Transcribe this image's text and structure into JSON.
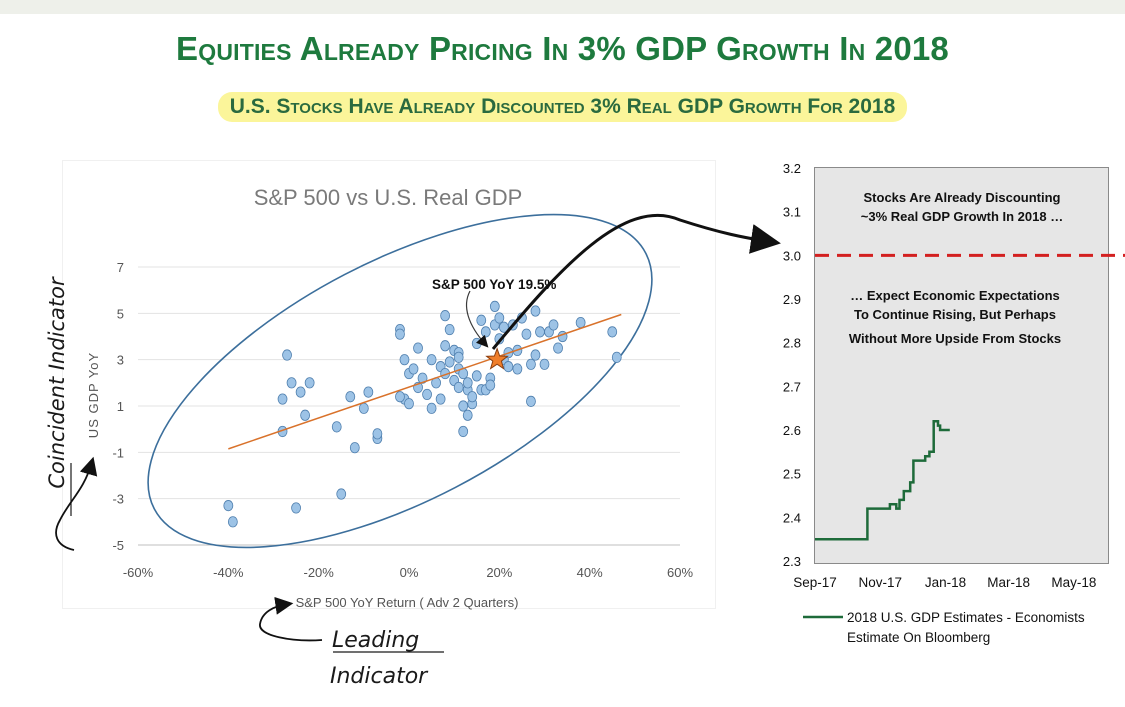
{
  "header": {
    "title": "Equities Already Pricing In 3% GDP Growth In 2018",
    "subtitle": "U.S. Stocks Have Already Discounted 3% Real GDP Growth For 2018"
  },
  "colors": {
    "title_green": "#1e7a3e",
    "highlight": "#fbf59a",
    "scatter_point": "#9dc3e6",
    "trendline": "#d9722b",
    "ellipse": "#3c6f9c",
    "gdp_line": "#1e6b3a",
    "dashed_line": "#d32020"
  },
  "annotations": {
    "coincident": "Coincident Indicator",
    "leading_line1": "Leading",
    "leading_line2": "Indicator",
    "star_label": "S&P 500 YoY 19.5%"
  },
  "chart_data": [
    {
      "type": "scatter",
      "title": "S&P 500 vs U.S. Real GDP",
      "xlabel": "S&P 500 YoY Return ( Adv 2 Quarters)",
      "ylabel": "US GDP YoY",
      "xlim": [
        -0.6,
        0.6
      ],
      "ylim": [
        -5,
        7
      ],
      "x_ticks": [
        -0.6,
        -0.4,
        -0.2,
        0,
        0.2,
        0.4,
        0.6
      ],
      "x_tick_labels": [
        "-60%",
        "-40%",
        "-20%",
        "0%",
        "20%",
        "40%",
        "60%"
      ],
      "y_ticks": [
        -5,
        -3,
        -1,
        1,
        3,
        5,
        7
      ],
      "y_tick_labels": [
        "-5",
        "-3",
        "-1",
        "1",
        "3",
        "5",
        "7"
      ],
      "points": [
        [
          -0.4,
          -3.3
        ],
        [
          -0.39,
          -4.0
        ],
        [
          -0.28,
          1.3
        ],
        [
          -0.27,
          3.2
        ],
        [
          -0.28,
          -0.1
        ],
        [
          -0.26,
          2.0
        ],
        [
          -0.24,
          1.6
        ],
        [
          -0.22,
          2.0
        ],
        [
          -0.23,
          0.6
        ],
        [
          -0.25,
          -3.4
        ],
        [
          -0.15,
          -2.8
        ],
        [
          -0.12,
          -0.8
        ],
        [
          -0.1,
          0.9
        ],
        [
          -0.09,
          1.6
        ],
        [
          -0.07,
          -0.4
        ],
        [
          -0.07,
          -0.2
        ],
        [
          -0.13,
          1.4
        ],
        [
          -0.16,
          0.1
        ],
        [
          -0.02,
          4.3
        ],
        [
          -0.02,
          4.1
        ],
        [
          -0.01,
          3.0
        ],
        [
          0.0,
          2.4
        ],
        [
          0.01,
          2.6
        ],
        [
          0.02,
          3.5
        ],
        [
          0.02,
          1.8
        ],
        [
          -0.01,
          1.3
        ],
        [
          -0.02,
          1.4
        ],
        [
          0.0,
          1.1
        ],
        [
          0.03,
          2.2
        ],
        [
          0.04,
          1.5
        ],
        [
          0.05,
          3.0
        ],
        [
          0.05,
          0.9
        ],
        [
          0.06,
          2.0
        ],
        [
          0.07,
          2.7
        ],
        [
          0.07,
          1.3
        ],
        [
          0.08,
          4.9
        ],
        [
          0.08,
          3.6
        ],
        [
          0.09,
          2.9
        ],
        [
          0.09,
          4.3
        ],
        [
          0.1,
          3.4
        ],
        [
          0.1,
          2.1
        ],
        [
          0.11,
          1.8
        ],
        [
          0.11,
          2.6
        ],
        [
          0.11,
          3.3
        ],
        [
          0.12,
          1.0
        ],
        [
          0.12,
          2.4
        ],
        [
          0.13,
          1.7
        ],
        [
          0.13,
          2.0
        ],
        [
          0.14,
          1.1
        ],
        [
          0.14,
          1.4
        ],
        [
          0.15,
          2.3
        ],
        [
          0.15,
          3.7
        ],
        [
          0.16,
          1.7
        ],
        [
          0.16,
          4.7
        ],
        [
          0.17,
          4.2
        ],
        [
          0.17,
          1.7
        ],
        [
          0.18,
          2.2
        ],
        [
          0.18,
          1.9
        ],
        [
          0.19,
          5.3
        ],
        [
          0.19,
          4.5
        ],
        [
          0.2,
          3.9
        ],
        [
          0.2,
          4.8
        ],
        [
          0.21,
          3.0
        ],
        [
          0.21,
          4.4
        ],
        [
          0.22,
          2.7
        ],
        [
          0.23,
          4.5
        ],
        [
          0.24,
          2.6
        ],
        [
          0.24,
          3.4
        ],
        [
          0.25,
          4.8
        ],
        [
          0.26,
          4.1
        ],
        [
          0.27,
          2.8
        ],
        [
          0.27,
          1.2
        ],
        [
          0.28,
          5.1
        ],
        [
          0.28,
          3.2
        ],
        [
          0.29,
          4.2
        ],
        [
          0.3,
          2.8
        ],
        [
          0.31,
          4.2
        ],
        [
          0.32,
          4.5
        ],
        [
          0.33,
          3.5
        ],
        [
          0.34,
          4.0
        ],
        [
          0.38,
          4.6
        ],
        [
          0.45,
          4.2
        ],
        [
          0.46,
          3.1
        ],
        [
          0.12,
          -0.1
        ],
        [
          0.13,
          0.6
        ],
        [
          0.11,
          3.1
        ],
        [
          0.08,
          2.4
        ],
        [
          0.22,
          3.3
        ]
      ],
      "trendline": [
        [
          -0.4,
          -0.85
        ],
        [
          0.47,
          4.95
        ]
      ],
      "star_point": [
        0.195,
        3.0
      ]
    },
    {
      "type": "line",
      "ylim": [
        2.3,
        3.2
      ],
      "y_ticks": [
        2.3,
        2.4,
        2.5,
        2.6,
        2.7,
        2.8,
        2.9,
        3.0,
        3.1,
        3.2
      ],
      "y_tick_labels": [
        "2.3",
        "2.4",
        "2.5",
        "2.6",
        "2.7",
        "2.8",
        "2.9",
        "3.0",
        "3.1",
        "3.2"
      ],
      "x_tick_labels": [
        "Sep-17",
        "Nov-17",
        "Jan-18",
        "Mar-18",
        "May-18"
      ],
      "x_ticks": [
        "2017-09-01",
        "2017-11-01",
        "2018-01-01",
        "2018-03-01",
        "2018-05-01"
      ],
      "xlim": [
        "2017-09-01",
        "2018-06-01"
      ],
      "reference_line": 3.0,
      "annotation_top_line1": "Stocks Are Already Discounting",
      "annotation_top_line2": "~3% Real GDP Growth In 2018 …",
      "annotation_mid_line1": "… Expect Economic Expectations",
      "annotation_mid_line2": "To Continue Rising, But Perhaps",
      "annotation_mid_line3": "Without More Upside From Stocks",
      "series": [
        {
          "name": "2018 U.S. GDP Estimates - Economists Estimate On Bloomberg",
          "legend_line1": "2018 U.S. GDP Estimates - Economists",
          "legend_line2": "Estimate On Bloomberg",
          "points": [
            [
              "2017-09-01",
              2.35
            ],
            [
              "2017-10-20",
              2.35
            ],
            [
              "2017-10-20",
              2.42
            ],
            [
              "2017-11-10",
              2.42
            ],
            [
              "2017-11-10",
              2.43
            ],
            [
              "2017-11-16",
              2.43
            ],
            [
              "2017-11-16",
              2.42
            ],
            [
              "2017-11-19",
              2.42
            ],
            [
              "2017-11-19",
              2.44
            ],
            [
              "2017-11-23",
              2.44
            ],
            [
              "2017-11-23",
              2.46
            ],
            [
              "2017-11-29",
              2.46
            ],
            [
              "2017-11-29",
              2.48
            ],
            [
              "2017-12-02",
              2.48
            ],
            [
              "2017-12-02",
              2.53
            ],
            [
              "2017-12-13",
              2.53
            ],
            [
              "2017-12-13",
              2.54
            ],
            [
              "2017-12-17",
              2.54
            ],
            [
              "2017-12-17",
              2.55
            ],
            [
              "2017-12-21",
              2.55
            ],
            [
              "2017-12-21",
              2.62
            ],
            [
              "2017-12-25",
              2.62
            ],
            [
              "2017-12-25",
              2.61
            ],
            [
              "2017-12-27",
              2.61
            ],
            [
              "2017-12-27",
              2.6
            ],
            [
              "2018-01-05",
              2.6
            ]
          ]
        }
      ]
    }
  ]
}
